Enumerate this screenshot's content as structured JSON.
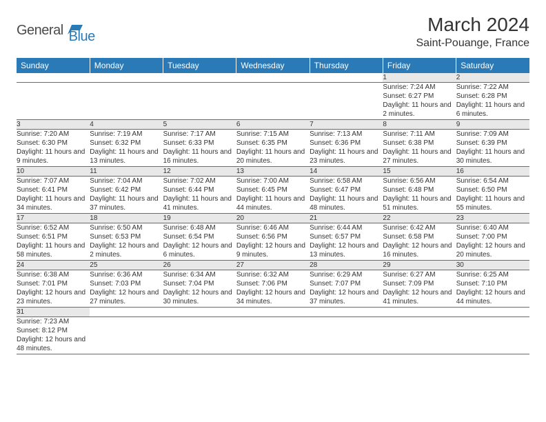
{
  "logo": {
    "general": "General",
    "blue": "Blue"
  },
  "title": "March 2024",
  "location": "Saint-Pouange, France",
  "colors": {
    "header_bg": "#2a7ab8",
    "header_text": "#ffffff",
    "daynum_bg": "#e8e8e8",
    "row_border": "#2a7ab8",
    "text": "#333333"
  },
  "weekdays": [
    "Sunday",
    "Monday",
    "Tuesday",
    "Wednesday",
    "Thursday",
    "Friday",
    "Saturday"
  ],
  "weeks": [
    [
      null,
      null,
      null,
      null,
      null,
      {
        "n": "1",
        "sr": "7:24 AM",
        "ss": "6:27 PM",
        "dl": "11 hours and 2 minutes."
      },
      {
        "n": "2",
        "sr": "7:22 AM",
        "ss": "6:28 PM",
        "dl": "11 hours and 6 minutes."
      }
    ],
    [
      {
        "n": "3",
        "sr": "7:20 AM",
        "ss": "6:30 PM",
        "dl": "11 hours and 9 minutes."
      },
      {
        "n": "4",
        "sr": "7:19 AM",
        "ss": "6:32 PM",
        "dl": "11 hours and 13 minutes."
      },
      {
        "n": "5",
        "sr": "7:17 AM",
        "ss": "6:33 PM",
        "dl": "11 hours and 16 minutes."
      },
      {
        "n": "6",
        "sr": "7:15 AM",
        "ss": "6:35 PM",
        "dl": "11 hours and 20 minutes."
      },
      {
        "n": "7",
        "sr": "7:13 AM",
        "ss": "6:36 PM",
        "dl": "11 hours and 23 minutes."
      },
      {
        "n": "8",
        "sr": "7:11 AM",
        "ss": "6:38 PM",
        "dl": "11 hours and 27 minutes."
      },
      {
        "n": "9",
        "sr": "7:09 AM",
        "ss": "6:39 PM",
        "dl": "11 hours and 30 minutes."
      }
    ],
    [
      {
        "n": "10",
        "sr": "7:07 AM",
        "ss": "6:41 PM",
        "dl": "11 hours and 34 minutes."
      },
      {
        "n": "11",
        "sr": "7:04 AM",
        "ss": "6:42 PM",
        "dl": "11 hours and 37 minutes."
      },
      {
        "n": "12",
        "sr": "7:02 AM",
        "ss": "6:44 PM",
        "dl": "11 hours and 41 minutes."
      },
      {
        "n": "13",
        "sr": "7:00 AM",
        "ss": "6:45 PM",
        "dl": "11 hours and 44 minutes."
      },
      {
        "n": "14",
        "sr": "6:58 AM",
        "ss": "6:47 PM",
        "dl": "11 hours and 48 minutes."
      },
      {
        "n": "15",
        "sr": "6:56 AM",
        "ss": "6:48 PM",
        "dl": "11 hours and 51 minutes."
      },
      {
        "n": "16",
        "sr": "6:54 AM",
        "ss": "6:50 PM",
        "dl": "11 hours and 55 minutes."
      }
    ],
    [
      {
        "n": "17",
        "sr": "6:52 AM",
        "ss": "6:51 PM",
        "dl": "11 hours and 58 minutes."
      },
      {
        "n": "18",
        "sr": "6:50 AM",
        "ss": "6:53 PM",
        "dl": "12 hours and 2 minutes."
      },
      {
        "n": "19",
        "sr": "6:48 AM",
        "ss": "6:54 PM",
        "dl": "12 hours and 6 minutes."
      },
      {
        "n": "20",
        "sr": "6:46 AM",
        "ss": "6:56 PM",
        "dl": "12 hours and 9 minutes."
      },
      {
        "n": "21",
        "sr": "6:44 AM",
        "ss": "6:57 PM",
        "dl": "12 hours and 13 minutes."
      },
      {
        "n": "22",
        "sr": "6:42 AM",
        "ss": "6:58 PM",
        "dl": "12 hours and 16 minutes."
      },
      {
        "n": "23",
        "sr": "6:40 AM",
        "ss": "7:00 PM",
        "dl": "12 hours and 20 minutes."
      }
    ],
    [
      {
        "n": "24",
        "sr": "6:38 AM",
        "ss": "7:01 PM",
        "dl": "12 hours and 23 minutes."
      },
      {
        "n": "25",
        "sr": "6:36 AM",
        "ss": "7:03 PM",
        "dl": "12 hours and 27 minutes."
      },
      {
        "n": "26",
        "sr": "6:34 AM",
        "ss": "7:04 PM",
        "dl": "12 hours and 30 minutes."
      },
      {
        "n": "27",
        "sr": "6:32 AM",
        "ss": "7:06 PM",
        "dl": "12 hours and 34 minutes."
      },
      {
        "n": "28",
        "sr": "6:29 AM",
        "ss": "7:07 PM",
        "dl": "12 hours and 37 minutes."
      },
      {
        "n": "29",
        "sr": "6:27 AM",
        "ss": "7:09 PM",
        "dl": "12 hours and 41 minutes."
      },
      {
        "n": "30",
        "sr": "6:25 AM",
        "ss": "7:10 PM",
        "dl": "12 hours and 44 minutes."
      }
    ],
    [
      {
        "n": "31",
        "sr": "7:23 AM",
        "ss": "8:12 PM",
        "dl": "12 hours and 48 minutes."
      },
      null,
      null,
      null,
      null,
      null,
      null
    ]
  ],
  "labels": {
    "sunrise": "Sunrise:",
    "sunset": "Sunset:",
    "daylight": "Daylight:"
  }
}
